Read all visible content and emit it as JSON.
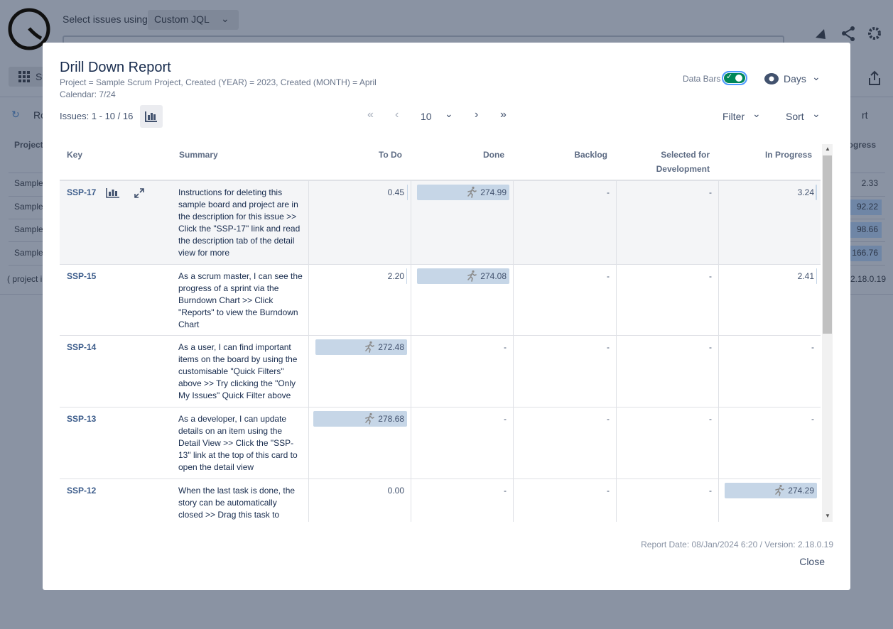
{
  "background": {
    "jql_label": "Select issues using",
    "jql_mode": "Custom JQL",
    "nav_fragment": "St",
    "refresh_fragment": "Ro",
    "sort_fragment": "rt",
    "table": {
      "headers": [
        "Project",
        "ogress"
      ],
      "rows": [
        [
          "Sample",
          "2.33"
        ],
        [
          "Sample",
          "92.22"
        ],
        [
          "Sample",
          "98.66"
        ],
        [
          "Sample",
          "166.76"
        ]
      ]
    },
    "footer_fragment": "( project i",
    "version": "2.18.0.19"
  },
  "modal": {
    "title": "Drill Down Report",
    "subtitle": "Project = Sample Scrum Project, Created (YEAR) = 2023, Created (MONTH) = April",
    "calendar": "Calendar: 7/24",
    "data_bars_label": "Data Bars",
    "data_bars_on": true,
    "time_unit": "Days",
    "issues_range": "Issues: 1 - 10 / 16",
    "page_size": "10",
    "filter": "Filter",
    "sort": "Sort",
    "table": {
      "columns": [
        "Key",
        "Summary",
        "To Do",
        "Done",
        "Backlog",
        "Selected for Development",
        "In Progress"
      ],
      "rows": [
        {
          "key": "SSP-17",
          "summary": "Instructions for deleting this sample board and project are in the description for this issue >> Click the \"SSP-17\" link and read the description tab of the detail view for more",
          "cells": [
            "0.45",
            "274.99",
            "-",
            "-",
            "3.24"
          ]
        },
        {
          "key": "SSP-15",
          "summary": "As a scrum master, I can see the progress of a sprint via the Burndown Chart >> Click \"Reports\" to view the Burndown Chart",
          "cells": [
            "2.20",
            "274.08",
            "-",
            "-",
            "2.41"
          ]
        },
        {
          "key": "SSP-14",
          "summary": "As a user, I can find important items on the board by using the customisable \"Quick Filters\" above >> Try clicking the \"Only My Issues\" Quick Filter above",
          "cells": [
            "272.48",
            "-",
            "-",
            "-",
            "-"
          ]
        },
        {
          "key": "SSP-13",
          "summary": "As a developer, I can update details on an item using the Detail View >> Click the \"SSP-13\" link at the top of this card to open the detail view",
          "cells": [
            "278.68",
            "-",
            "-",
            "-",
            "-"
          ]
        },
        {
          "key": "SSP-12",
          "summary": "When the last task is done, the story can be automatically closed >> Drag this task to",
          "cells": [
            "0.00",
            "-",
            "-",
            "-",
            "274.29"
          ]
        }
      ]
    },
    "report_date": "Report Date: 08/Jan/2024 6:20 / Version: 2.18.0.19",
    "close": "Close"
  }
}
